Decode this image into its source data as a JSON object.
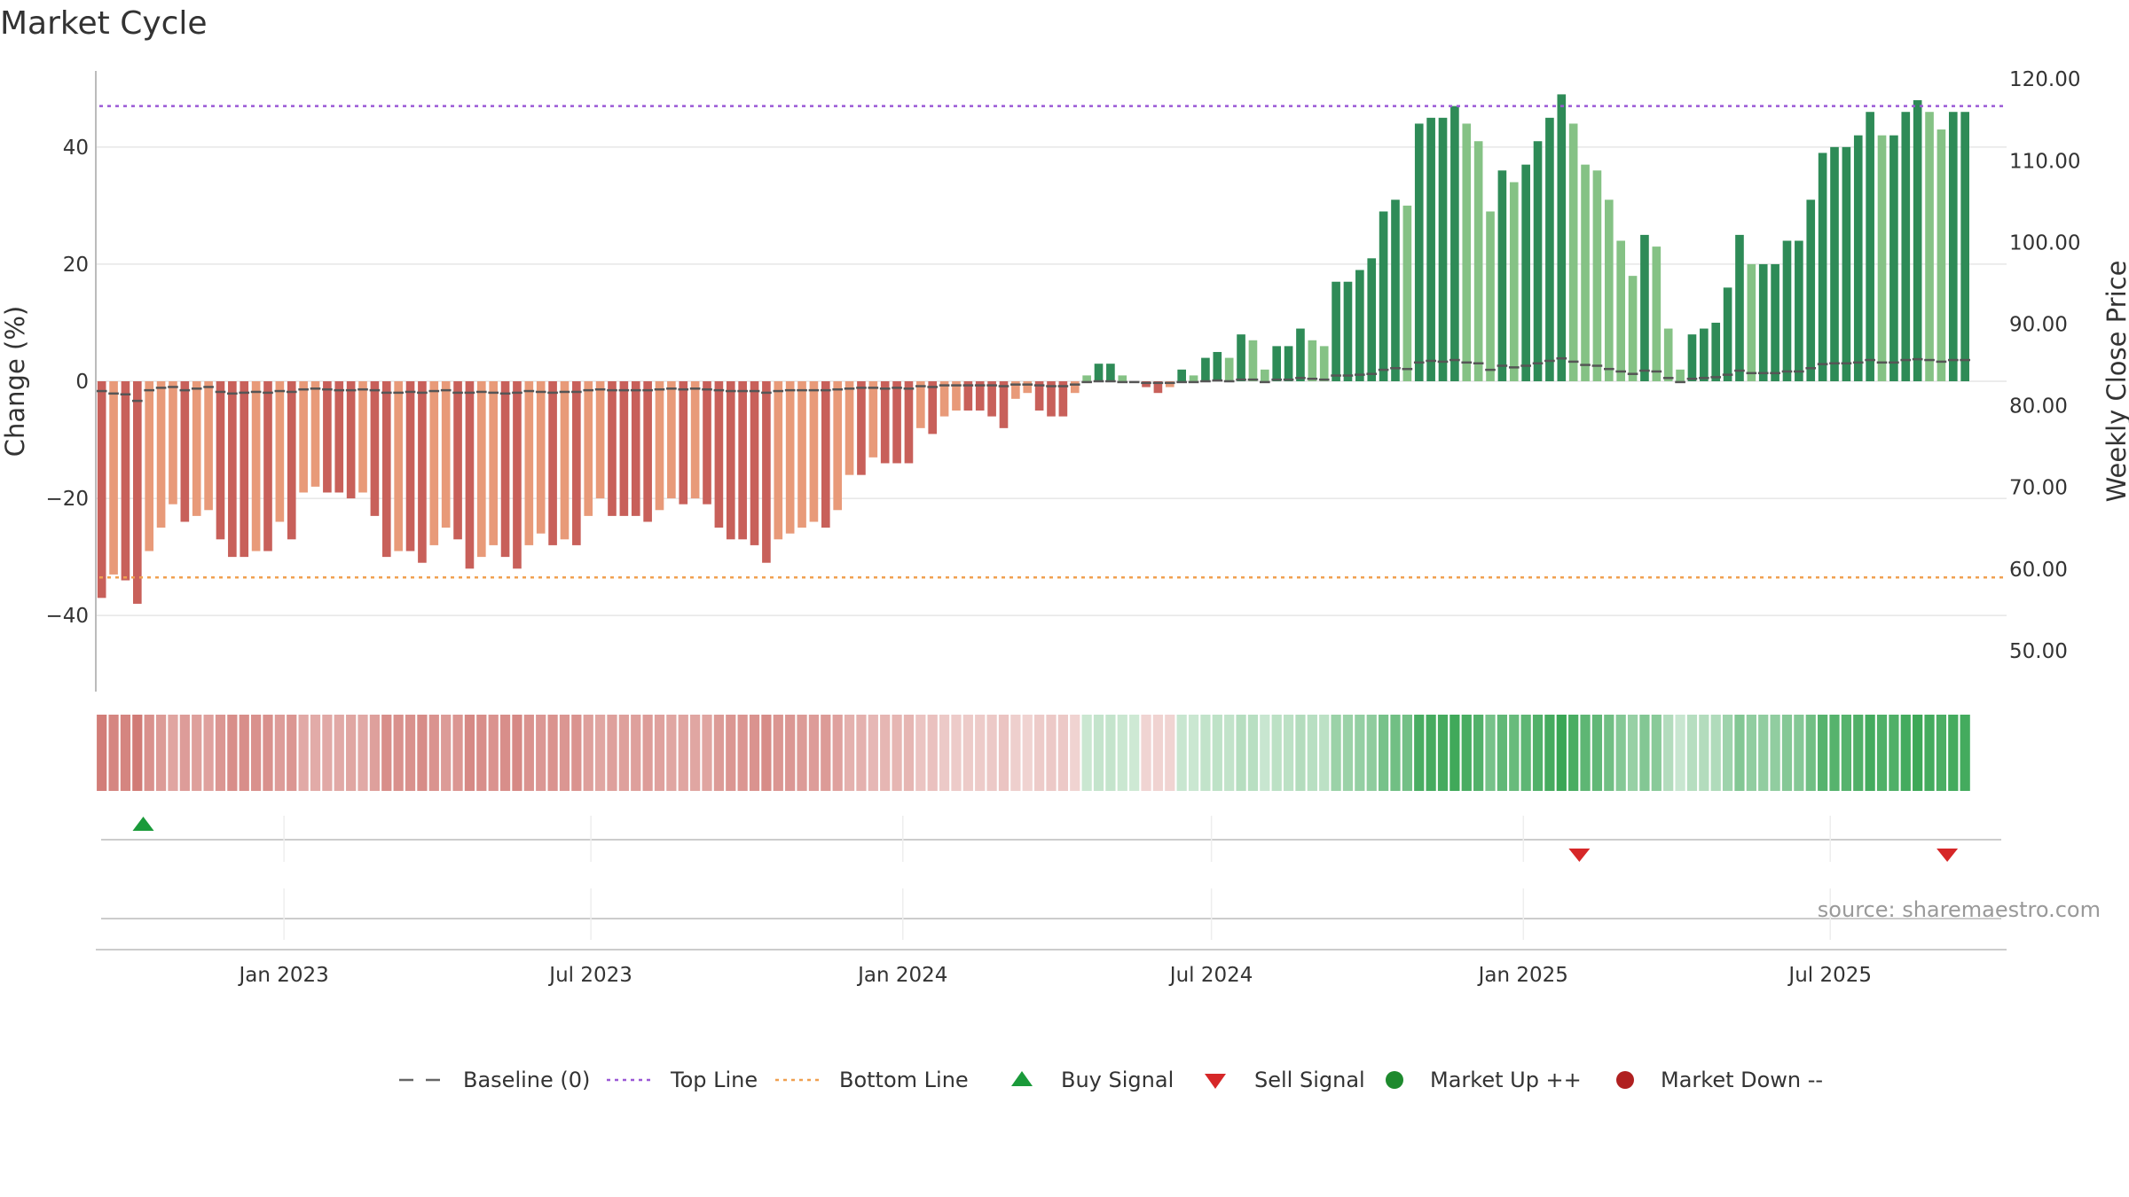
{
  "chart_data": {
    "type": "bar",
    "title": "Market Cycle",
    "ylabel": "Change (%)",
    "y2label": "Weekly Close Price",
    "ylim": [
      -53,
      53
    ],
    "y2lim": [
      45.0,
      121.0
    ],
    "yticks": [
      {
        "value": 40,
        "label": "40"
      },
      {
        "value": 20,
        "label": "20"
      },
      {
        "value": 0,
        "label": "0"
      },
      {
        "value": -20,
        "label": "−20"
      },
      {
        "value": -40,
        "label": "−40"
      }
    ],
    "y2ticks": [
      "120.00",
      "110.00",
      "100.00",
      "90.00",
      "80.00",
      "70.00",
      "60.00",
      "50.00"
    ],
    "x_start": "2022-09-12",
    "x_end": "2025-10-13",
    "xticks": [
      {
        "date": "2023-01-01",
        "label": "Jan 2023"
      },
      {
        "date": "2023-07-01",
        "label": "Jul 2023"
      },
      {
        "date": "2024-01-01",
        "label": "Jan 2024"
      },
      {
        "date": "2024-07-01",
        "label": "Jul 2024"
      },
      {
        "date": "2025-01-01",
        "label": "Jan 2025"
      },
      {
        "date": "2025-07-01",
        "label": "Jul 2025"
      }
    ],
    "top_line": 47,
    "bottom_line": -33.5,
    "baseline": 0,
    "grid": true,
    "first_week": "2022-09-12",
    "values": [
      -37,
      -33,
      -34,
      -38,
      -29,
      -25,
      -21,
      -24,
      -23,
      -22,
      -27,
      -30,
      -30,
      -29,
      -29,
      -24,
      -27,
      -19,
      -18,
      -19,
      -19,
      -20,
      -19,
      -23,
      -30,
      -29,
      -29,
      -31,
      -28,
      -25,
      -27,
      -32,
      -30,
      -28,
      -30,
      -32,
      -28,
      -26,
      -28,
      -27,
      -28,
      -23,
      -20,
      -23,
      -23,
      -23,
      -24,
      -22,
      -20,
      -21,
      -20,
      -21,
      -25,
      -27,
      -27,
      -28,
      -31,
      -27,
      -26,
      -25,
      -24,
      -25,
      -22,
      -16,
      -16,
      -13,
      -14,
      -14,
      -14,
      -8,
      -9,
      -6,
      -5,
      -5,
      -5,
      -6,
      -8,
      -3,
      -2,
      -5,
      -6,
      -6,
      -2,
      1,
      3,
      3,
      1,
      0,
      -1,
      -2,
      -1,
      2,
      1,
      4,
      5,
      4,
      8,
      7,
      2,
      6,
      6,
      9,
      7,
      6,
      17,
      17,
      19,
      21,
      29,
      31,
      30,
      44,
      45,
      45,
      47,
      44,
      41,
      29,
      36,
      34,
      37,
      41,
      45,
      49,
      44,
      37,
      36,
      31,
      24,
      18,
      25,
      23,
      9,
      2,
      8,
      9,
      10,
      16,
      25,
      20,
      20,
      20,
      24,
      24,
      31,
      39,
      40,
      40,
      42,
      46,
      42,
      42,
      46,
      48,
      46,
      43,
      46,
      46
    ],
    "price_close": [
      81.8,
      81.5,
      81.4,
      80.6,
      81.9,
      82.2,
      82.3,
      81.9,
      82.1,
      82.3,
      81.7,
      81.5,
      81.6,
      81.7,
      81.6,
      81.8,
      81.7,
      82.0,
      82.1,
      82.0,
      81.9,
      81.9,
      82.0,
      81.9,
      81.6,
      81.6,
      81.7,
      81.6,
      81.8,
      81.9,
      81.6,
      81.6,
      81.7,
      81.6,
      81.5,
      81.6,
      81.8,
      81.7,
      81.6,
      81.7,
      81.7,
      81.9,
      82.0,
      81.9,
      81.9,
      81.9,
      81.9,
      82.0,
      82.1,
      82.0,
      82.1,
      82.0,
      81.9,
      81.8,
      81.8,
      81.8,
      81.6,
      81.8,
      81.9,
      81.9,
      81.9,
      81.9,
      82.0,
      82.1,
      82.2,
      82.2,
      82.1,
      82.2,
      82.1,
      82.4,
      82.3,
      82.5,
      82.5,
      82.5,
      82.5,
      82.5,
      82.4,
      82.6,
      82.6,
      82.5,
      82.4,
      82.4,
      82.6,
      82.9,
      83.0,
      83.0,
      82.9,
      82.9,
      82.8,
      82.8,
      82.8,
      82.9,
      82.9,
      83.0,
      83.1,
      83.0,
      83.2,
      83.2,
      82.9,
      83.2,
      83.2,
      83.4,
      83.3,
      83.2,
      83.7,
      83.7,
      83.8,
      83.9,
      84.4,
      84.6,
      84.5,
      85.3,
      85.5,
      85.4,
      85.6,
      85.3,
      85.2,
      84.4,
      84.9,
      84.7,
      84.9,
      85.2,
      85.5,
      85.8,
      85.4,
      85.0,
      84.9,
      84.5,
      84.2,
      83.9,
      84.3,
      84.2,
      83.4,
      82.9,
      83.3,
      83.4,
      83.5,
      83.8,
      84.3,
      84.0,
      84.0,
      84.0,
      84.2,
      84.2,
      84.6,
      85.1,
      85.2,
      85.2,
      85.3,
      85.6,
      85.3,
      85.3,
      85.6,
      85.7,
      85.6,
      85.4,
      85.6,
      85.6
    ],
    "buy_signals": [
      "2022-10-10"
    ],
    "sell_signals": [
      "2025-02-03",
      "2025-09-08"
    ],
    "colors": {
      "down_strong": "#c8605a",
      "down_light": "#e89a79",
      "up_strong": "#2e8b57",
      "up_light": "#85c285",
      "top_line": "#9b59d6",
      "bottom_line": "#f0a050",
      "baseline": "#666666",
      "buy": "#1a9a3a",
      "sell": "#d62728",
      "market_up": "#1e8a2e",
      "market_down": "#b02020",
      "strip_neg": "#c8605a",
      "strip_pos": "#3aa655"
    },
    "legend": [
      {
        "key": "baseline",
        "label": "Baseline (0)"
      },
      {
        "key": "top",
        "label": "Top Line"
      },
      {
        "key": "bottom",
        "label": "Bottom Line"
      },
      {
        "key": "buy",
        "label": "Buy Signal"
      },
      {
        "key": "sell",
        "label": "Sell Signal"
      },
      {
        "key": "up",
        "label": "Market Up ++"
      },
      {
        "key": "down",
        "label": "Market Down --"
      }
    ],
    "legend_position": "bottom-center",
    "source": "source: sharemaestro.com"
  }
}
